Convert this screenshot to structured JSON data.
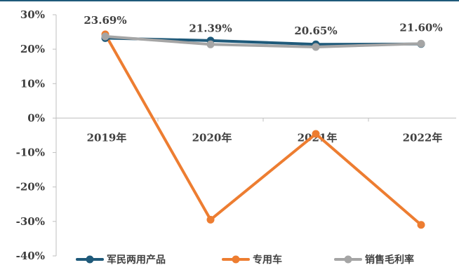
{
  "chart_data": {
    "type": "line",
    "categories": [
      "2019年",
      "2020年",
      "2021年",
      "2022年"
    ],
    "ylim": [
      -40,
      30
    ],
    "yticks": [
      "30%",
      "20%",
      "10%",
      "0%",
      "-10%",
      "-20%",
      "-30%",
      "-40%"
    ],
    "ytick_values": [
      30,
      20,
      10,
      0,
      -10,
      -20,
      -30,
      -40
    ],
    "grid": false,
    "legend_position": "bottom",
    "series": [
      {
        "name": "军民两用产品",
        "color": "#1f5a7a",
        "values": [
          23.2,
          22.5,
          21.4,
          21.5
        ]
      },
      {
        "name": "专用车",
        "color": "#ed7d31",
        "values": [
          24.3,
          -29.5,
          -4.6,
          -31.0
        ]
      },
      {
        "name": "销售毛利率",
        "color": "#a5a5a5",
        "values": [
          23.69,
          21.39,
          20.65,
          21.6
        ]
      }
    ],
    "data_labels": [
      "23.69%",
      "21.39%",
      "20.65%",
      "21.60%"
    ]
  }
}
